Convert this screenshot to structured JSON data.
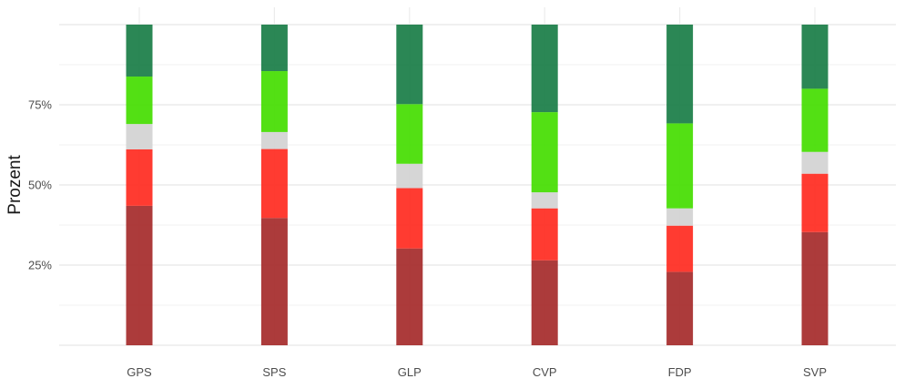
{
  "chart_data": {
    "type": "bar",
    "stacked": true,
    "orientation": "vertical",
    "title": "",
    "xlabel": "",
    "ylabel": "Prozent",
    "ylim": [
      0,
      100
    ],
    "y_ticks": [
      25,
      50,
      75
    ],
    "y_tick_labels": [
      "25%",
      "50%",
      "75%"
    ],
    "grid": true,
    "legend": "none",
    "categories": [
      "GPS",
      "SPS",
      "GLP",
      "CVP",
      "FDP",
      "SVP"
    ],
    "series": [
      {
        "color": "#a52a2a",
        "values": [
          43.5,
          39.7,
          30.2,
          26.5,
          22.9,
          35.3
        ]
      },
      {
        "color": "#ff2a20",
        "values": [
          17.6,
          21.5,
          18.8,
          16.2,
          14.4,
          18.2
        ]
      },
      {
        "color": "#d3d3d3",
        "values": [
          7.9,
          5.3,
          7.6,
          5.0,
          5.4,
          6.8
        ]
      },
      {
        "color": "#44dd00",
        "values": [
          14.8,
          19.0,
          18.6,
          25.0,
          26.5,
          19.7
        ]
      },
      {
        "color": "#197d46",
        "values": [
          16.2,
          14.5,
          24.8,
          27.3,
          30.8,
          20.0
        ]
      }
    ]
  }
}
